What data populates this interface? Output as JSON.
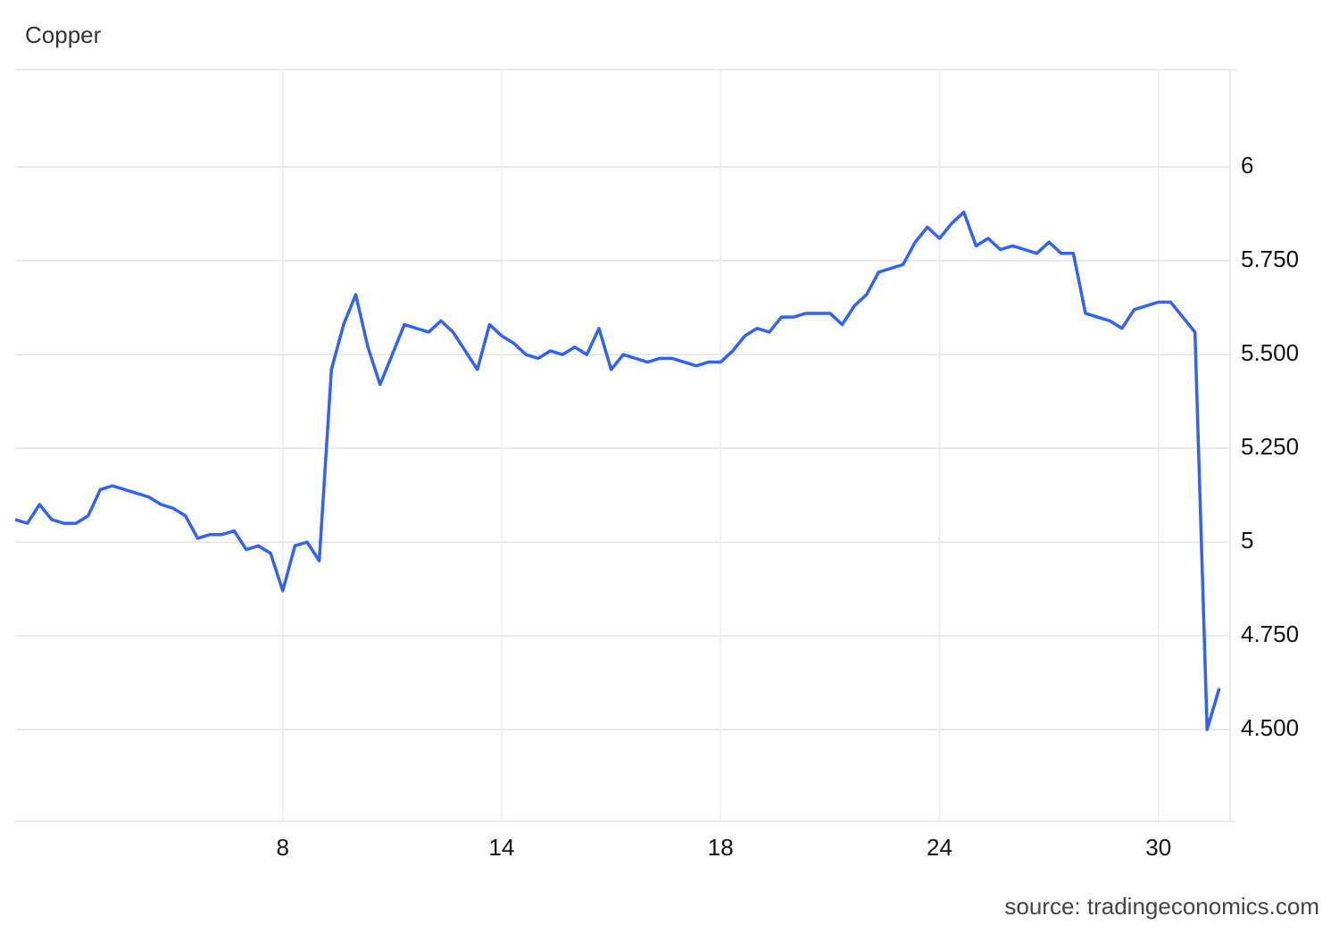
{
  "chart_data": {
    "type": "line",
    "title": "Copper",
    "source": "source: tradingeconomics.com",
    "categories": [
      null,
      null,
      null,
      null,
      null,
      null,
      null,
      null,
      null,
      null,
      null,
      null,
      null,
      null,
      null,
      null,
      null,
      null,
      null,
      null,
      null,
      null,
      "8",
      null,
      null,
      null,
      null,
      null,
      null,
      null,
      null,
      null,
      null,
      null,
      null,
      null,
      null,
      null,
      null,
      null,
      "14",
      null,
      null,
      null,
      null,
      null,
      null,
      null,
      null,
      null,
      null,
      null,
      null,
      null,
      null,
      null,
      null,
      null,
      "18",
      null,
      null,
      null,
      null,
      null,
      null,
      null,
      null,
      null,
      null,
      null,
      null,
      null,
      null,
      null,
      null,
      null,
      "24",
      null,
      null,
      null,
      null,
      null,
      null,
      null,
      null,
      null,
      null,
      null,
      null,
      null,
      null,
      null,
      null,
      null,
      "30",
      null,
      null,
      null,
      null,
      null
    ],
    "values": [
      5.06,
      5.05,
      5.1,
      5.06,
      5.05,
      5.05,
      5.07,
      5.14,
      5.15,
      5.14,
      5.13,
      5.12,
      5.1,
      5.09,
      5.07,
      5.01,
      5.02,
      5.02,
      5.03,
      4.98,
      4.99,
      4.97,
      4.87,
      4.99,
      5.0,
      4.95,
      5.46,
      5.58,
      5.66,
      5.52,
      5.42,
      5.5,
      5.58,
      5.57,
      5.56,
      5.59,
      5.56,
      5.51,
      5.46,
      5.58,
      5.55,
      5.53,
      5.5,
      5.49,
      5.51,
      5.5,
      5.52,
      5.5,
      5.57,
      5.46,
      5.5,
      5.49,
      5.48,
      5.49,
      5.49,
      5.48,
      5.47,
      5.48,
      5.48,
      5.51,
      5.55,
      5.57,
      5.56,
      5.6,
      5.6,
      5.61,
      5.61,
      5.61,
      5.58,
      5.63,
      5.66,
      5.72,
      5.73,
      5.74,
      5.8,
      5.84,
      5.81,
      5.85,
      5.88,
      5.79,
      5.81,
      5.78,
      5.79,
      5.78,
      5.77,
      5.8,
      5.77,
      5.77,
      5.61,
      5.6,
      5.59,
      5.57,
      5.62,
      5.63,
      5.64,
      5.64,
      5.6,
      5.56,
      4.5,
      4.61
    ],
    "color": "#2f62f5",
    "ylim": [
      4.255,
      6.26
    ],
    "yticks": [
      {
        "value": 4.5,
        "label": "4.500"
      },
      {
        "value": 4.75,
        "label": "4.750"
      },
      5,
      {
        "value": 5.25,
        "label": "5.250"
      },
      {
        "value": 5.5,
        "label": "5.500"
      },
      {
        "value": 5.75,
        "label": "5.750"
      },
      6
    ],
    "grid": true
  }
}
